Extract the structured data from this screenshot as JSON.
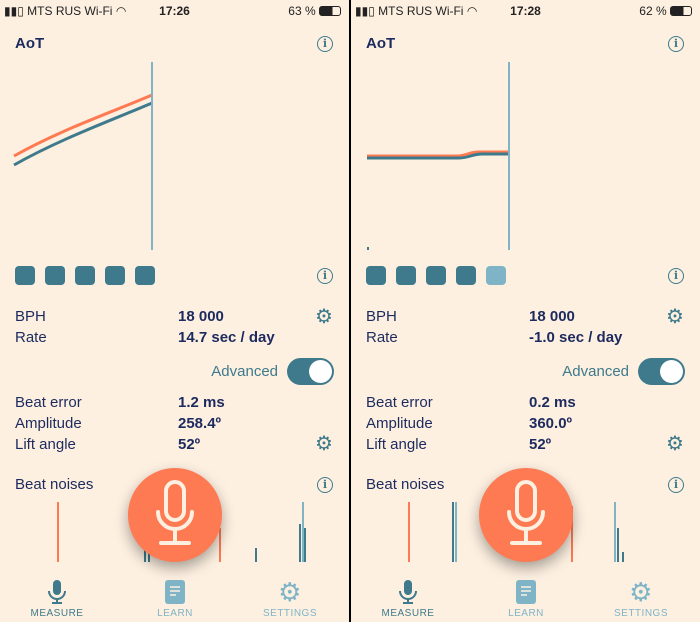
{
  "colors": {
    "background": "#fdf0e1",
    "accent": "#3e7a8c",
    "orange": "#fe7a52",
    "text": "#1c2a5e",
    "light_teal": "#7fb4c7"
  },
  "screens": [
    {
      "status": {
        "carrier": "MTS RUS Wi-Fi",
        "time": "17:26",
        "battery": "63 %"
      },
      "aot_title": "AoT",
      "bph_label": "BPH",
      "bph": "18 000",
      "rate_label": "Rate",
      "rate": "14.7 sec / day",
      "advanced_label": "Advanced",
      "advanced_on": true,
      "beat_error_label": "Beat error",
      "beat_error": "1.2 ms",
      "amplitude_label": "Amplitude",
      "amplitude": "258.4º",
      "lift_angle_label": "Lift angle",
      "lift_angle": "52º",
      "beat_noises_label": "Beat noises",
      "quality_squares_filled": 5,
      "tabs": [
        {
          "label": "MEASURE",
          "icon": "mic-icon",
          "active": true
        },
        {
          "label": "LEARN",
          "icon": "document-icon"
        },
        {
          "label": "SETTINGS",
          "icon": "gear-icon"
        }
      ]
    },
    {
      "status": {
        "carrier": "MTS RUS Wi-Fi",
        "time": "17:28",
        "battery": "62 %"
      },
      "aot_title": "AoT",
      "bph_label": "BPH",
      "bph": "18 000",
      "rate_label": "Rate",
      "rate": "-1.0 sec / day",
      "advanced_label": "Advanced",
      "advanced_on": true,
      "beat_error_label": "Beat error",
      "beat_error": "0.2 ms",
      "amplitude_label": "Amplitude",
      "amplitude": "360.0º",
      "lift_angle_label": "Lift angle",
      "lift_angle": "52º",
      "beat_noises_label": "Beat noises",
      "quality_squares_filled": 4,
      "tabs": [
        {
          "label": "MEASURE",
          "icon": "mic-icon",
          "active": true
        },
        {
          "label": "LEARN",
          "icon": "document-icon"
        },
        {
          "label": "SETTINGS",
          "icon": "gear-icon"
        }
      ]
    }
  ]
}
